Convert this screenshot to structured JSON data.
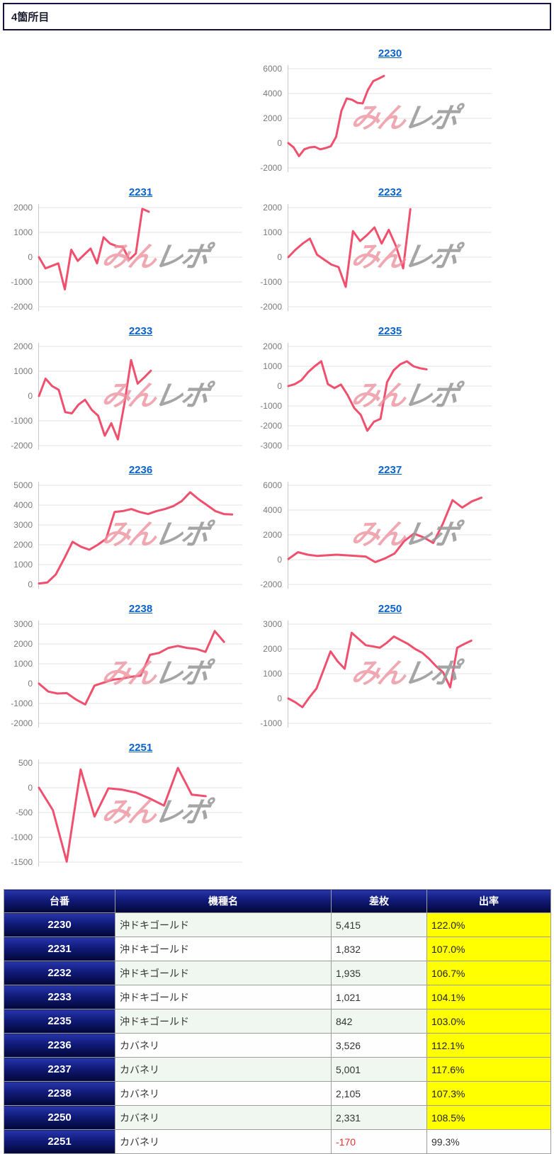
{
  "page": {
    "title": "4箇所目"
  },
  "watermark": {
    "pink": "みん",
    "gray": "レポ"
  },
  "colors": {
    "line": "#f0506e",
    "link": "#0b62c8",
    "highlight": "#ffff00",
    "negative": "#e53030",
    "navy_top": "#2836ac",
    "navy_mid": "#101a78",
    "navy_bot": "#020736"
  },
  "chart_data": [
    {
      "id": "2230",
      "type": "line",
      "row": 1,
      "col": 2,
      "yticks": [
        6000,
        4000,
        2000,
        0,
        -2000
      ],
      "ylim": [
        -2000,
        6000
      ],
      "x_end_fraction": 0.47,
      "values": [
        0,
        -350,
        -1050,
        -500,
        -350,
        -300,
        -500,
        -400,
        -250,
        500,
        2600,
        3600,
        3500,
        3250,
        3200,
        4300,
        5000,
        5200,
        5415
      ]
    },
    {
      "id": "2231",
      "type": "line",
      "row": 2,
      "col": 1,
      "yticks": [
        2000,
        1000,
        0,
        -1000,
        -2000
      ],
      "ylim": [
        -2000,
        2000
      ],
      "x_end_fraction": 0.54,
      "values": [
        0,
        -450,
        -350,
        -250,
        -1300,
        300,
        -150,
        100,
        350,
        -250,
        800,
        550,
        450,
        400,
        -100,
        150,
        1950,
        1832
      ]
    },
    {
      "id": "2232",
      "type": "line",
      "row": 2,
      "col": 2,
      "yticks": [
        2000,
        1000,
        0,
        -1000,
        -2000
      ],
      "ylim": [
        -2000,
        2000
      ],
      "x_end_fraction": 0.6,
      "values": [
        0,
        300,
        550,
        750,
        100,
        -100,
        -300,
        -400,
        -1200,
        1050,
        650,
        900,
        1200,
        550,
        1100,
        450,
        -450,
        1935
      ]
    },
    {
      "id": "2233",
      "type": "line",
      "row": 3,
      "col": 1,
      "yticks": [
        2000,
        1000,
        0,
        -1000,
        -2000
      ],
      "ylim": [
        -2000,
        2000
      ],
      "x_end_fraction": 0.55,
      "values": [
        0,
        700,
        400,
        250,
        -650,
        -700,
        -350,
        -150,
        -550,
        -800,
        -1600,
        -1100,
        -1750,
        -300,
        1450,
        500,
        750,
        1021
      ]
    },
    {
      "id": "2235",
      "type": "line",
      "row": 3,
      "col": 2,
      "yticks": [
        2000,
        1000,
        0,
        -1000,
        -2000,
        -3000
      ],
      "ylim": [
        -3000,
        2000
      ],
      "x_end_fraction": 0.68,
      "values": [
        0,
        100,
        300,
        700,
        1000,
        1250,
        100,
        -100,
        80,
        -450,
        -1100,
        -1450,
        -2250,
        -1800,
        -1650,
        200,
        800,
        1100,
        1250,
        1000,
        900,
        842
      ]
    },
    {
      "id": "2236",
      "type": "line",
      "row": 4,
      "col": 1,
      "yticks": [
        5000,
        4000,
        3000,
        2000,
        1000,
        0
      ],
      "ylim": [
        0,
        5000
      ],
      "x_end_fraction": 0.95,
      "values": [
        50,
        100,
        500,
        1300,
        2150,
        1900,
        1750,
        2000,
        2300,
        3650,
        3700,
        3800,
        3650,
        3550,
        3700,
        3800,
        3950,
        4200,
        4650,
        4300,
        4000,
        3700,
        3550,
        3526
      ]
    },
    {
      "id": "2237",
      "type": "line",
      "row": 4,
      "col": 2,
      "yticks": [
        6000,
        4000,
        2000,
        0,
        -2000
      ],
      "ylim": [
        -2000,
        6000
      ],
      "x_end_fraction": 0.95,
      "values": [
        50,
        600,
        400,
        300,
        350,
        400,
        350,
        300,
        250,
        -200,
        100,
        500,
        1500,
        2100,
        1800,
        1350,
        2900,
        4800,
        4200,
        4700,
        5001
      ]
    },
    {
      "id": "2238",
      "type": "line",
      "row": 5,
      "col": 1,
      "yticks": [
        3000,
        2000,
        1000,
        0,
        -1000,
        -2000
      ],
      "ylim": [
        -2000,
        3000
      ],
      "x_end_fraction": 0.91,
      "values": [
        0,
        -400,
        -500,
        -480,
        -800,
        -1050,
        -100,
        50,
        200,
        250,
        350,
        400,
        1450,
        1550,
        1800,
        1900,
        1800,
        1750,
        1600,
        2650,
        2105
      ]
    },
    {
      "id": "2250",
      "type": "line",
      "row": 5,
      "col": 2,
      "yticks": [
        3000,
        2000,
        1000,
        0,
        -1000
      ],
      "ylim": [
        -1000,
        3000
      ],
      "x_end_fraction": 0.9,
      "values": [
        0,
        -150,
        -350,
        50,
        400,
        1150,
        1900,
        1500,
        1200,
        2650,
        2400,
        2150,
        2100,
        2050,
        2250,
        2500,
        2350,
        2200,
        2000,
        1850,
        1600,
        1300,
        1050,
        450,
        2050,
        2200,
        2331
      ]
    },
    {
      "id": "2251",
      "type": "line",
      "row": 6,
      "col": 1,
      "yticks": [
        500,
        0,
        -500,
        -1000,
        -1500
      ],
      "ylim": [
        -1500,
        500
      ],
      "x_end_fraction": 0.82,
      "values": [
        0,
        -450,
        -1490,
        370,
        -580,
        -10,
        -40,
        -100,
        -220,
        -360,
        400,
        -140,
        -170
      ]
    }
  ],
  "table": {
    "headers": [
      "台番",
      "機種名",
      "差枚",
      "出率"
    ],
    "rows": [
      {
        "unit": "2230",
        "model": "沖ドキゴールド",
        "diff": "5,415",
        "rate": "122.0%",
        "highlight": true
      },
      {
        "unit": "2231",
        "model": "沖ドキゴールド",
        "diff": "1,832",
        "rate": "107.0%",
        "highlight": true
      },
      {
        "unit": "2232",
        "model": "沖ドキゴールド",
        "diff": "1,935",
        "rate": "106.7%",
        "highlight": true
      },
      {
        "unit": "2233",
        "model": "沖ドキゴールド",
        "diff": "1,021",
        "rate": "104.1%",
        "highlight": true
      },
      {
        "unit": "2235",
        "model": "沖ドキゴールド",
        "diff": "842",
        "rate": "103.0%",
        "highlight": true
      },
      {
        "unit": "2236",
        "model": "カバネリ",
        "diff": "3,526",
        "rate": "112.1%",
        "highlight": true
      },
      {
        "unit": "2237",
        "model": "カバネリ",
        "diff": "5,001",
        "rate": "117.6%",
        "highlight": true
      },
      {
        "unit": "2238",
        "model": "カバネリ",
        "diff": "2,105",
        "rate": "107.3%",
        "highlight": true
      },
      {
        "unit": "2250",
        "model": "カバネリ",
        "diff": "2,331",
        "rate": "108.5%",
        "highlight": true
      },
      {
        "unit": "2251",
        "model": "カバネリ",
        "diff": "-170",
        "rate": "99.3%",
        "highlight": false
      }
    ]
  }
}
